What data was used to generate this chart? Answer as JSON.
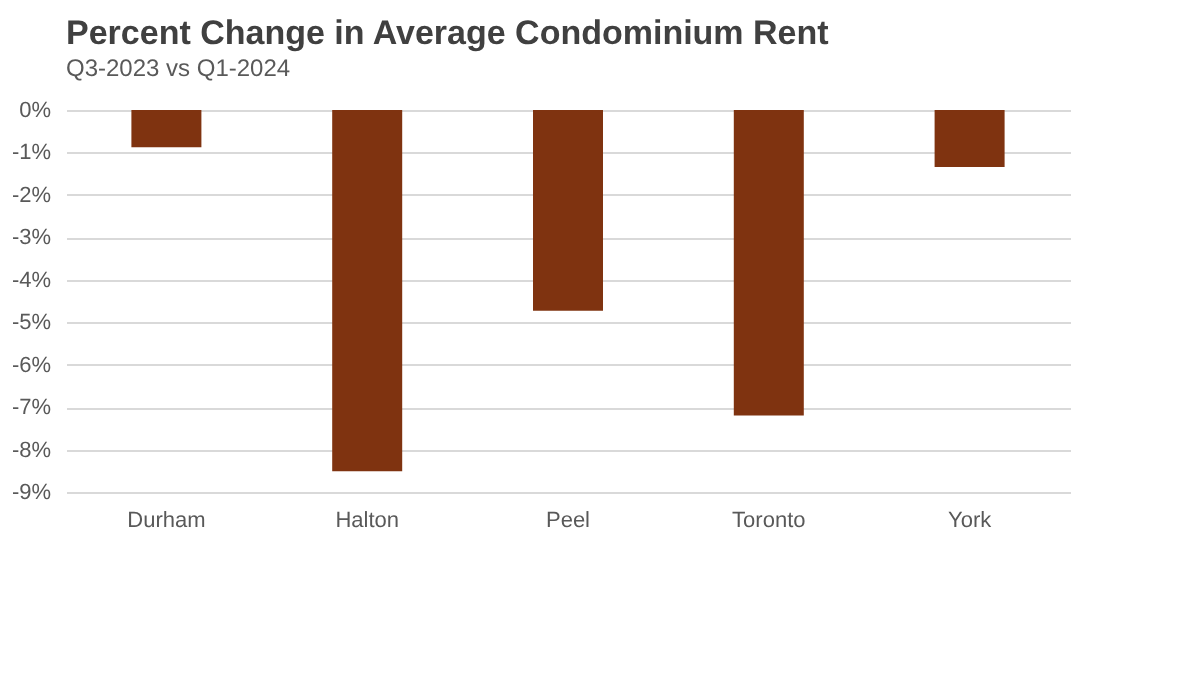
{
  "chart_data": {
    "type": "bar",
    "title": "Percent Change in Average Condominium Rent",
    "subtitle": "Q3-2023 vs Q1-2024",
    "categories": [
      "Durham",
      "Halton",
      "Peel",
      "Toronto",
      "York"
    ],
    "values": [
      -0.88,
      -8.51,
      -4.73,
      -7.2,
      -1.34
    ],
    "color": "#7f3310",
    "ylim": [
      -9,
      0
    ],
    "yticks": [
      {
        "value": 0,
        "label": "0%"
      },
      {
        "value": -1,
        "label": "-1%"
      },
      {
        "value": -2,
        "label": "-2%"
      },
      {
        "value": -3,
        "label": "-3%"
      },
      {
        "value": -4,
        "label": "-4%"
      },
      {
        "value": -5,
        "label": "-5%"
      },
      {
        "value": -6,
        "label": "-6%"
      },
      {
        "value": -7,
        "label": "-7%"
      },
      {
        "value": -8,
        "label": "-8%"
      },
      {
        "value": -9,
        "label": "-9%"
      }
    ],
    "grid": "y"
  }
}
